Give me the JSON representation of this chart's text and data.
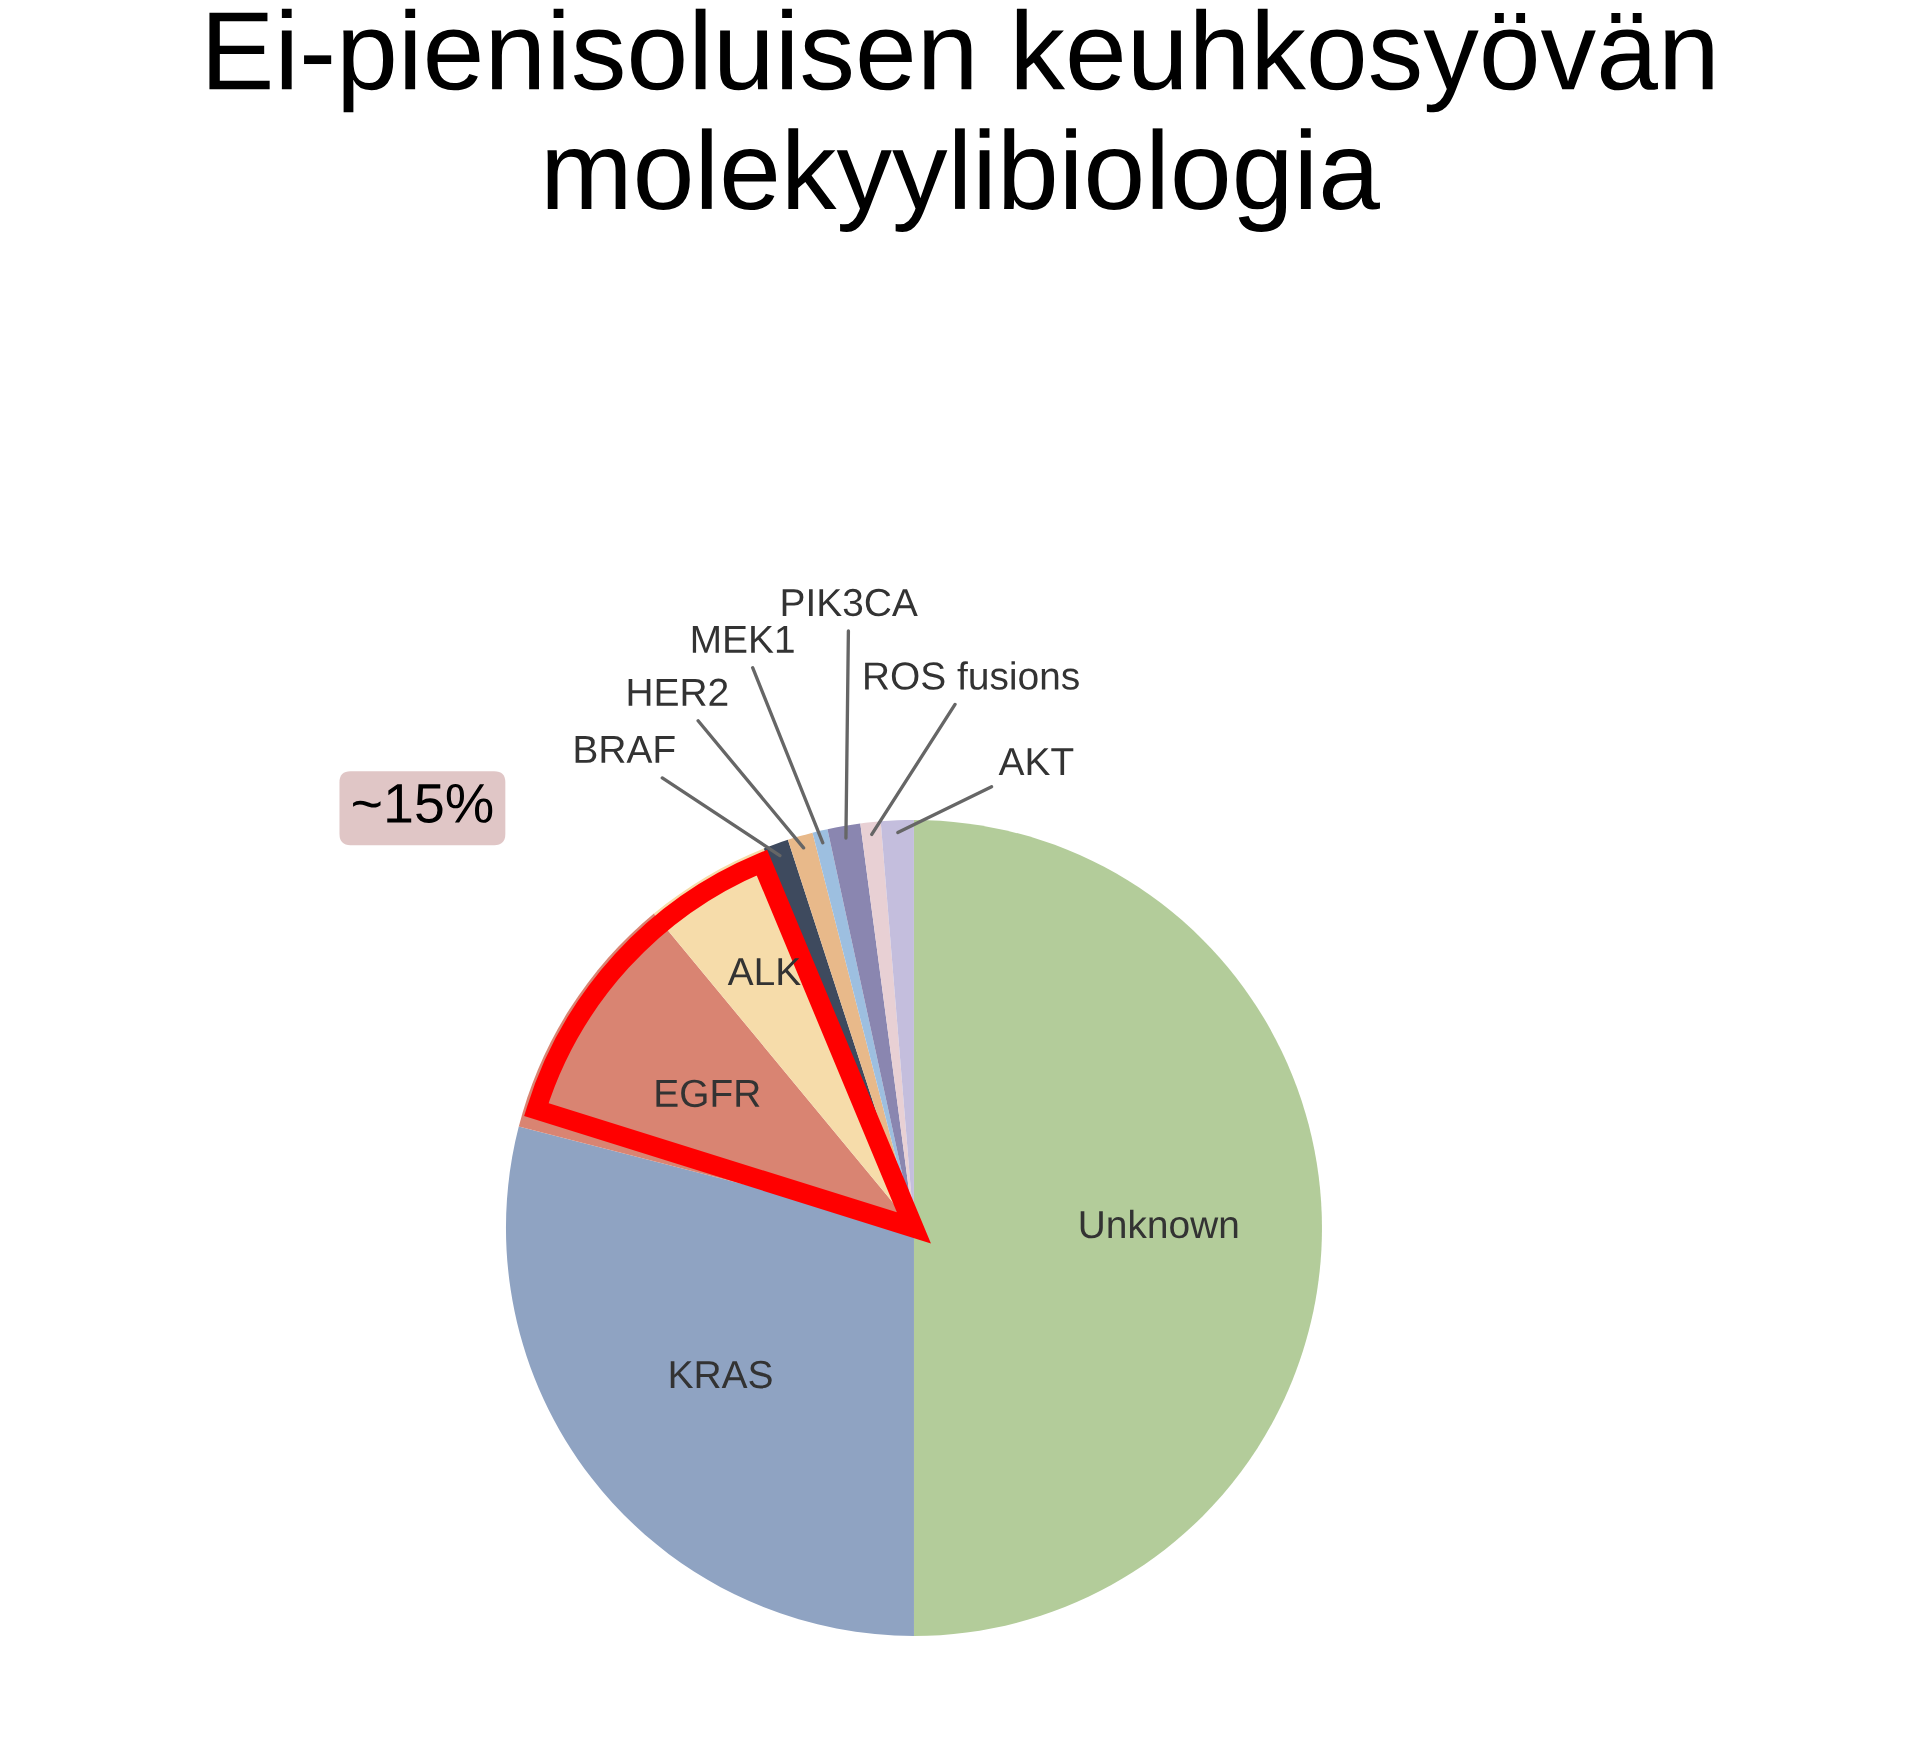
{
  "chart_data": {
    "type": "pie",
    "title": "Ei-pienisoluisen keuhkosyövän molekyylibiologia",
    "categories": [
      "Unknown",
      "KRAS",
      "EGFR",
      "ALK",
      "BRAF",
      "HER2",
      "MEK1",
      "PIK3CA",
      "ROS fusions",
      "AKT"
    ],
    "values": [
      50,
      29,
      10,
      5,
      1,
      1,
      0.6,
      1.3,
      0.8,
      1.3
    ],
    "colors": [
      "#b3cc9a",
      "#8fa3c2",
      "#d98472",
      "#f6dcaa",
      "#3e4a5e",
      "#e8b98a",
      "#9dbfe0",
      "#8a86b0",
      "#e8d0d4",
      "#c4bedd"
    ],
    "annotations": [
      "~15%"
    ]
  }
}
